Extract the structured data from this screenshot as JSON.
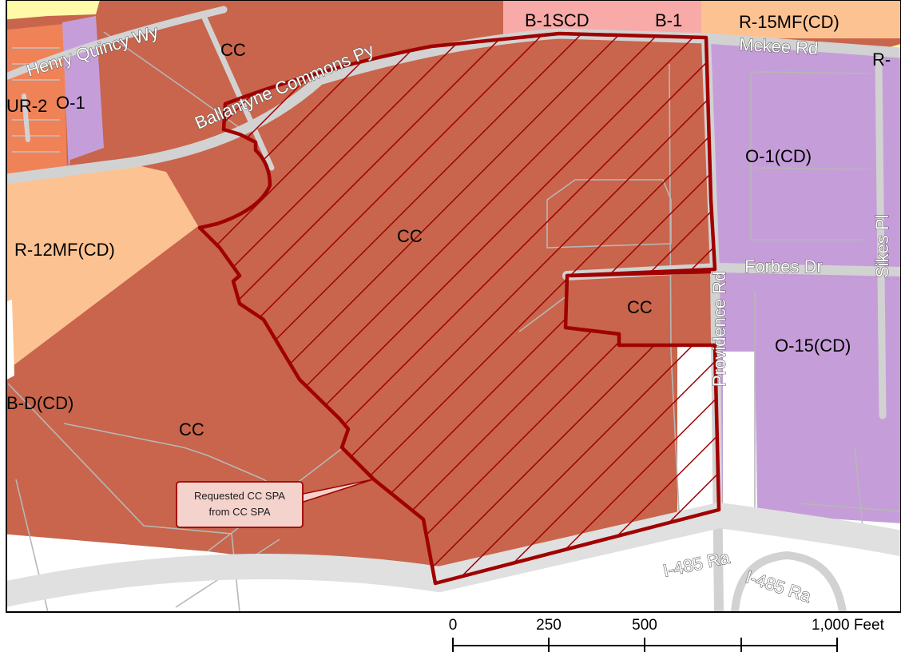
{
  "map": {
    "colors": {
      "cc": "#c8654c",
      "multifamily": "#fdc292",
      "office": "#c59ed9",
      "business": "#f7aaa7",
      "ur": "#f08258",
      "residential": "#fffaa8",
      "road": "#d2d2d2",
      "parcel_line": "#b7b7b7",
      "boundary": "#a00000",
      "frame": "#000000"
    },
    "zones": {
      "cc_top": "CC",
      "henry_ur": "UR-2",
      "henry_office": "O-1",
      "r12": "R-12MF(CD)",
      "cc_main": "CC",
      "cc_inner": "CC",
      "cc_lower": "CC",
      "bd": "B-D(CD)",
      "b1scd": "B-1SCD",
      "b1": "B-1",
      "r15": "R-15MF(CD)",
      "r_cut": "R-",
      "o1cd": "O-1(CD)",
      "o15cd": "O-15(CD)"
    },
    "roads": {
      "henry_quincy": "Henry Quincy Wy",
      "ballantyne": "Ballantyne Commons Py",
      "mckee": "Mckee Rd",
      "forbes": "Forbes Dr",
      "providence": "Providence Rd",
      "sikes": "Sikes Pl",
      "i485_a": "I-485 Ra",
      "i485_b": "I-485 Ra"
    },
    "callout": {
      "line1": "Requested CC SPA",
      "line2": "from CC SPA"
    },
    "scale_bar": {
      "labels": [
        "0",
        "250",
        "500",
        "1,000 Feet"
      ]
    }
  }
}
